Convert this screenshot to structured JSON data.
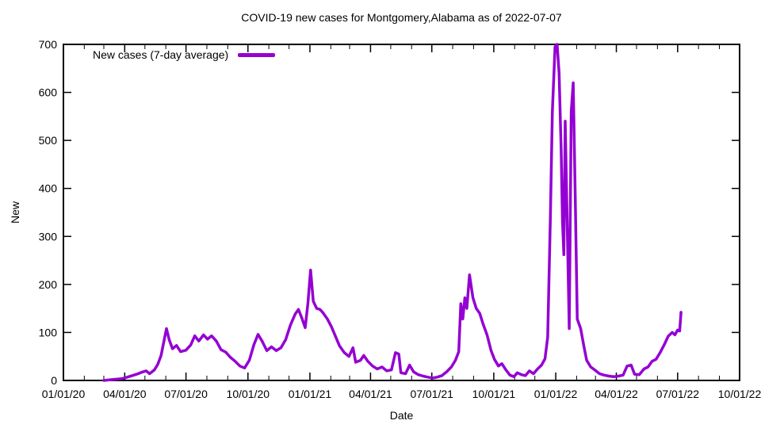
{
  "title": "COVID-19 new cases for Montgomery,Alabama as of 2022-07-07",
  "axis": {
    "xlabel": "Date",
    "ylabel": "New"
  },
  "legend": {
    "label": "New cases (7-day average)"
  },
  "colors": {
    "line": "#9400D3",
    "axis": "#000000",
    "background": "#ffffff"
  },
  "chart_data": {
    "type": "line",
    "title": "COVID-19 new cases for Montgomery,Alabama as of 2022-07-07",
    "xlabel": "Date",
    "ylabel": "New",
    "grid": false,
    "legend_position": "top-left-inside",
    "ylim": [
      0,
      700
    ],
    "y_ticks": [
      0,
      100,
      200,
      300,
      400,
      500,
      600,
      700
    ],
    "xlim": [
      "2020-01-01",
      "2022-10-01"
    ],
    "x_tick_dates": [
      "2020-01-01",
      "2020-04-01",
      "2020-07-01",
      "2020-10-01",
      "2021-01-01",
      "2021-04-01",
      "2021-07-01",
      "2021-10-01",
      "2022-01-01",
      "2022-04-01",
      "2022-07-01",
      "2022-10-01"
    ],
    "x_tick_labels": [
      "01/01/20",
      "04/01/20",
      "07/01/20",
      "10/01/20",
      "01/01/21",
      "04/01/21",
      "07/01/21",
      "10/01/21",
      "01/01/22",
      "04/01/22",
      "07/01/22",
      "10/01/22"
    ],
    "x_minor_ticks": "monthly",
    "series": [
      {
        "name": "New cases (7-day average)",
        "color": "#9400D3",
        "points": [
          [
            "2020-03-01",
            0
          ],
          [
            "2020-03-08",
            1
          ],
          [
            "2020-03-15",
            2
          ],
          [
            "2020-03-22",
            3
          ],
          [
            "2020-03-29",
            4
          ],
          [
            "2020-04-05",
            7
          ],
          [
            "2020-04-12",
            10
          ],
          [
            "2020-04-19",
            13
          ],
          [
            "2020-04-26",
            17
          ],
          [
            "2020-05-03",
            20
          ],
          [
            "2020-05-08",
            14
          ],
          [
            "2020-05-15",
            22
          ],
          [
            "2020-05-20",
            33
          ],
          [
            "2020-05-25",
            52
          ],
          [
            "2020-05-29",
            80
          ],
          [
            "2020-06-02",
            108
          ],
          [
            "2020-06-06",
            85
          ],
          [
            "2020-06-11",
            66
          ],
          [
            "2020-06-17",
            73
          ],
          [
            "2020-06-23",
            60
          ],
          [
            "2020-07-01",
            63
          ],
          [
            "2020-07-08",
            74
          ],
          [
            "2020-07-14",
            93
          ],
          [
            "2020-07-20",
            82
          ],
          [
            "2020-07-27",
            95
          ],
          [
            "2020-08-02",
            86
          ],
          [
            "2020-08-08",
            93
          ],
          [
            "2020-08-15",
            82
          ],
          [
            "2020-08-22",
            64
          ],
          [
            "2020-08-29",
            59
          ],
          [
            "2020-09-05",
            48
          ],
          [
            "2020-09-12",
            40
          ],
          [
            "2020-09-19",
            30
          ],
          [
            "2020-09-26",
            26
          ],
          [
            "2020-10-03",
            42
          ],
          [
            "2020-10-10",
            75
          ],
          [
            "2020-10-16",
            96
          ],
          [
            "2020-10-22",
            82
          ],
          [
            "2020-10-29",
            62
          ],
          [
            "2020-11-05",
            70
          ],
          [
            "2020-11-12",
            62
          ],
          [
            "2020-11-19",
            68
          ],
          [
            "2020-11-26",
            85
          ],
          [
            "2020-12-03",
            115
          ],
          [
            "2020-12-10",
            138
          ],
          [
            "2020-12-15",
            148
          ],
          [
            "2020-12-20",
            130
          ],
          [
            "2020-12-25",
            110
          ],
          [
            "2020-12-29",
            160
          ],
          [
            "2021-01-02",
            230
          ],
          [
            "2021-01-06",
            165
          ],
          [
            "2021-01-11",
            150
          ],
          [
            "2021-01-16",
            148
          ],
          [
            "2021-01-21",
            140
          ],
          [
            "2021-01-27",
            128
          ],
          [
            "2021-02-02",
            112
          ],
          [
            "2021-02-08",
            92
          ],
          [
            "2021-02-14",
            72
          ],
          [
            "2021-02-21",
            58
          ],
          [
            "2021-02-28",
            50
          ],
          [
            "2021-03-06",
            68
          ],
          [
            "2021-03-10",
            38
          ],
          [
            "2021-03-17",
            42
          ],
          [
            "2021-03-22",
            52
          ],
          [
            "2021-03-28",
            40
          ],
          [
            "2021-04-04",
            30
          ],
          [
            "2021-04-11",
            24
          ],
          [
            "2021-04-18",
            28
          ],
          [
            "2021-04-25",
            20
          ],
          [
            "2021-05-02",
            22
          ],
          [
            "2021-05-08",
            58
          ],
          [
            "2021-05-13",
            55
          ],
          [
            "2021-05-16",
            16
          ],
          [
            "2021-05-23",
            14
          ],
          [
            "2021-05-29",
            32
          ],
          [
            "2021-06-04",
            18
          ],
          [
            "2021-06-11",
            12
          ],
          [
            "2021-06-18",
            9
          ],
          [
            "2021-06-25",
            7
          ],
          [
            "2021-07-02",
            5
          ],
          [
            "2021-07-09",
            7
          ],
          [
            "2021-07-16",
            10
          ],
          [
            "2021-07-23",
            18
          ],
          [
            "2021-07-30",
            28
          ],
          [
            "2021-08-05",
            42
          ],
          [
            "2021-08-10",
            60
          ],
          [
            "2021-08-13",
            160
          ],
          [
            "2021-08-16",
            128
          ],
          [
            "2021-08-19",
            172
          ],
          [
            "2021-08-22",
            150
          ],
          [
            "2021-08-26",
            220
          ],
          [
            "2021-08-31",
            172
          ],
          [
            "2021-09-05",
            150
          ],
          [
            "2021-09-10",
            140
          ],
          [
            "2021-09-15",
            118
          ],
          [
            "2021-09-21",
            95
          ],
          [
            "2021-09-27",
            62
          ],
          [
            "2021-10-02",
            44
          ],
          [
            "2021-10-08",
            30
          ],
          [
            "2021-10-13",
            35
          ],
          [
            "2021-10-19",
            22
          ],
          [
            "2021-10-25",
            11
          ],
          [
            "2021-10-31",
            8
          ],
          [
            "2021-11-05",
            16
          ],
          [
            "2021-11-11",
            12
          ],
          [
            "2021-11-17",
            10
          ],
          [
            "2021-11-23",
            20
          ],
          [
            "2021-11-29",
            14
          ],
          [
            "2021-12-05",
            24
          ],
          [
            "2021-12-11",
            32
          ],
          [
            "2021-12-16",
            45
          ],
          [
            "2021-12-20",
            90
          ],
          [
            "2021-12-24",
            340
          ],
          [
            "2021-12-27",
            560
          ],
          [
            "2021-12-31",
            695
          ],
          [
            "2022-01-03",
            700
          ],
          [
            "2022-01-06",
            640
          ],
          [
            "2022-01-09",
            480
          ],
          [
            "2022-01-11",
            330
          ],
          [
            "2022-01-13",
            262
          ],
          [
            "2022-01-15",
            540
          ],
          [
            "2022-01-18",
            330
          ],
          [
            "2022-01-21",
            108
          ],
          [
            "2022-01-24",
            560
          ],
          [
            "2022-01-27",
            620
          ],
          [
            "2022-01-30",
            380
          ],
          [
            "2022-02-02",
            128
          ],
          [
            "2022-02-07",
            108
          ],
          [
            "2022-02-12",
            70
          ],
          [
            "2022-02-16",
            42
          ],
          [
            "2022-02-22",
            28
          ],
          [
            "2022-02-28",
            22
          ],
          [
            "2022-03-07",
            14
          ],
          [
            "2022-03-14",
            11
          ],
          [
            "2022-03-21",
            9
          ],
          [
            "2022-03-28",
            8
          ],
          [
            "2022-04-04",
            9
          ],
          [
            "2022-04-11",
            11
          ],
          [
            "2022-04-17",
            30
          ],
          [
            "2022-04-23",
            32
          ],
          [
            "2022-04-28",
            13
          ],
          [
            "2022-05-05",
            12
          ],
          [
            "2022-05-12",
            24
          ],
          [
            "2022-05-18",
            28
          ],
          [
            "2022-05-24",
            40
          ],
          [
            "2022-05-30",
            44
          ],
          [
            "2022-06-05",
            58
          ],
          [
            "2022-06-11",
            74
          ],
          [
            "2022-06-17",
            92
          ],
          [
            "2022-06-23",
            100
          ],
          [
            "2022-06-27",
            95
          ],
          [
            "2022-07-01",
            105
          ],
          [
            "2022-07-04",
            103
          ],
          [
            "2022-07-06",
            142
          ]
        ]
      }
    ]
  }
}
